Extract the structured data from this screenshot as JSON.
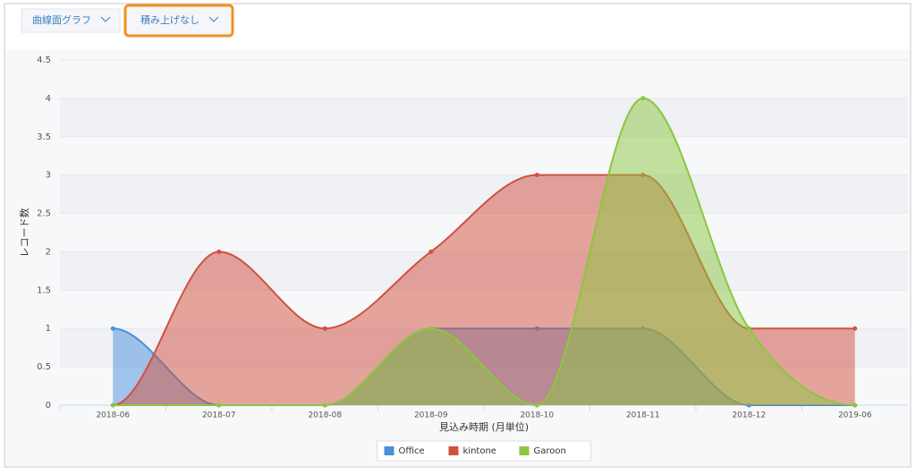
{
  "toolbar": {
    "chart_type": "曲線面グラフ",
    "stacking": "積み上げなし"
  },
  "chart_data": {
    "type": "area",
    "xlabel": "見込み時期 (月単位)",
    "ylabel": "レコード数",
    "categories": [
      "2018-06",
      "2018-07",
      "2018-08",
      "2018-09",
      "2018-10",
      "2018-11",
      "2018-12",
      "2019-06"
    ],
    "series": [
      {
        "name": "Office",
        "color": "#4a90d9",
        "values": [
          1,
          0,
          0,
          1,
          1,
          1,
          0,
          0
        ]
      },
      {
        "name": "kintone",
        "color": "#d2503e",
        "values": [
          0,
          2,
          1,
          2,
          3,
          3,
          1,
          1
        ]
      },
      {
        "name": "Garoon",
        "color": "#8cc63f",
        "values": [
          0,
          0,
          0,
          1,
          0,
          4,
          1,
          0
        ]
      }
    ],
    "ylim": [
      0,
      4.5
    ],
    "yticks": [
      0,
      0.5,
      1,
      1.5,
      2,
      2.5,
      3,
      3.5,
      4,
      4.5
    ],
    "grid": true,
    "legend": "bottom"
  }
}
